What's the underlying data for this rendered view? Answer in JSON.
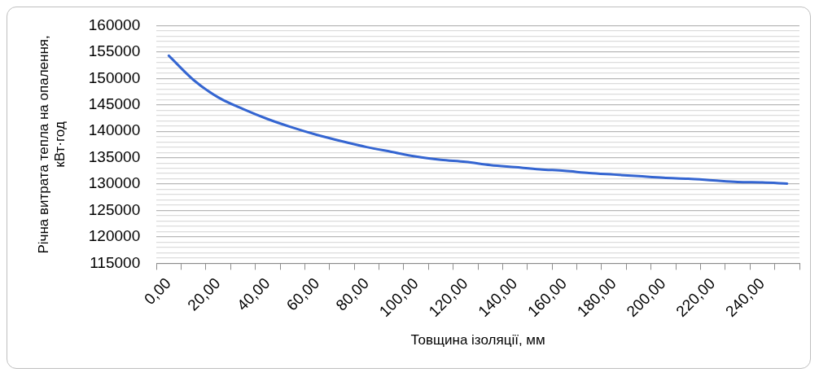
{
  "chart_data": {
    "type": "line",
    "xlabel": "Товщина ізоляції, мм",
    "ylabel": "Річна витрата тепла на опалення, кВт·год",
    "categories": [
      "0,00",
      null,
      "20,00",
      null,
      "40,00",
      null,
      "60,00",
      null,
      "80,00",
      null,
      "100,00",
      null,
      "120,00",
      null,
      "140,00",
      null,
      "160,00",
      null,
      "180,00",
      null,
      "200,00",
      null,
      "220,00",
      null,
      "240,00",
      null
    ],
    "series": [
      {
        "color": "#3465d1",
        "values": [
          154300,
          149700,
          146400,
          144200,
          142300,
          140700,
          139300,
          138100,
          137000,
          136100,
          135200,
          134600,
          134200,
          133600,
          133200,
          132800,
          132500,
          132100,
          131800,
          131500,
          131200,
          131000,
          130700,
          130400,
          130300,
          130100
        ]
      }
    ],
    "ylim": [
      115000,
      160000
    ],
    "yticks": [
      115000,
      {
        "value": 116000,
        "label": null
      },
      {
        "value": 117000,
        "label": null
      },
      {
        "value": 118000,
        "label": null
      },
      {
        "value": 119000,
        "label": null
      },
      120000,
      {
        "value": 121000,
        "label": null
      },
      {
        "value": 122000,
        "label": null
      },
      {
        "value": 123000,
        "label": null
      },
      {
        "value": 124000,
        "label": null
      },
      125000,
      {
        "value": 126000,
        "label": null
      },
      {
        "value": 127000,
        "label": null
      },
      {
        "value": 128000,
        "label": null
      },
      {
        "value": 129000,
        "label": null
      },
      130000,
      {
        "value": 131000,
        "label": null
      },
      {
        "value": 132000,
        "label": null
      },
      {
        "value": 133000,
        "label": null
      },
      {
        "value": 134000,
        "label": null
      },
      135000,
      {
        "value": 136000,
        "label": null
      },
      {
        "value": 137000,
        "label": null
      },
      {
        "value": 138000,
        "label": null
      },
      {
        "value": 139000,
        "label": null
      },
      140000,
      {
        "value": 141000,
        "label": null
      },
      {
        "value": 142000,
        "label": null
      },
      {
        "value": 143000,
        "label": null
      },
      {
        "value": 144000,
        "label": null
      },
      145000,
      {
        "value": 146000,
        "label": null
      },
      {
        "value": 147000,
        "label": null
      },
      {
        "value": 148000,
        "label": null
      },
      {
        "value": 149000,
        "label": null
      },
      150000,
      {
        "value": 151000,
        "label": null
      },
      {
        "value": 152000,
        "label": null
      },
      {
        "value": 153000,
        "label": null
      },
      {
        "value": 154000,
        "label": null
      },
      155000,
      {
        "value": 156000,
        "label": null
      },
      {
        "value": 157000,
        "label": null
      },
      {
        "value": 158000,
        "label": null
      },
      {
        "value": 159000,
        "label": null
      },
      160000
    ],
    "grid": "y",
    "legend": false,
    "marker": "none",
    "line_style": "solid"
  }
}
